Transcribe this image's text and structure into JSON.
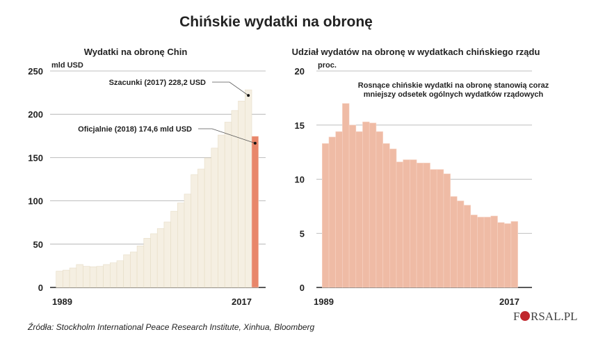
{
  "title": "Chińskie wydatki na obronę",
  "source": "Źródła: Stockholm International Peace Research Institute, Xinhua, Bloomberg",
  "logo": "FORSAL.PL",
  "chart_data": [
    {
      "type": "bar",
      "title": "Wydatki na obronę Chin",
      "ylabel": "mld USD",
      "ylim": [
        0,
        250
      ],
      "yticks": [
        "0",
        "50",
        "100",
        "150",
        "200",
        "250"
      ],
      "xtick_labels": [
        "1989",
        "2017"
      ],
      "grid": true,
      "categories": [
        1989,
        1990,
        1991,
        1992,
        1993,
        1994,
        1995,
        1996,
        1997,
        1998,
        1999,
        2000,
        2001,
        2002,
        2003,
        2004,
        2005,
        2006,
        2007,
        2008,
        2009,
        2010,
        2011,
        2012,
        2013,
        2014,
        2015,
        2016,
        2017,
        2018
      ],
      "values": [
        18.8,
        20,
        22.5,
        26.5,
        24.4,
        23.9,
        24.4,
        26.5,
        28.4,
        30.8,
        37.8,
        41,
        48,
        56.8,
        62,
        68,
        75.6,
        88,
        97.6,
        107.8,
        130.3,
        136.7,
        149.6,
        160.9,
        176,
        190.9,
        204.3,
        215.3,
        228.2,
        174.6
      ],
      "bar_colors": {
        "estimate": "#f5efe2",
        "official": "#e8866a"
      },
      "annotations": [
        {
          "text": "Szacunki (2017) 228,2 USD",
          "year": 2017,
          "value": 228.2
        },
        {
          "text": "Oficjalnie (2018) 174,6 mld USD",
          "year": 2018,
          "value": 174.6
        }
      ]
    },
    {
      "type": "bar",
      "title": "Udział wydatów na obronę w wydatkach chińskiego rządu",
      "ylabel": "proc.",
      "ylim": [
        0,
        20
      ],
      "yticks": [
        "0",
        "5",
        "10",
        "15",
        "20"
      ],
      "xtick_labels": [
        "1989",
        "2017"
      ],
      "grid": true,
      "categories": [
        1989,
        1990,
        1991,
        1992,
        1993,
        1994,
        1995,
        1996,
        1997,
        1998,
        1999,
        2000,
        2001,
        2002,
        2003,
        2004,
        2005,
        2006,
        2007,
        2008,
        2009,
        2010,
        2011,
        2012,
        2013,
        2014,
        2015,
        2016,
        2017
      ],
      "values": [
        13.3,
        13.9,
        14.4,
        17.0,
        15.0,
        14.4,
        15.3,
        15.2,
        14.4,
        13.3,
        12.8,
        11.6,
        11.8,
        11.8,
        11.5,
        11.5,
        10.9,
        10.9,
        10.5,
        8.4,
        8.0,
        7.6,
        6.7,
        6.5,
        6.5,
        6.6,
        6.0,
        5.9,
        6.1
      ],
      "bar_color": "#efbba5",
      "annotation_lines": [
        "Rosnące chińskie wydatki na obronę stanowią coraz",
        "mniejszy odsetek ogólnych wydatków rządowych"
      ]
    }
  ]
}
